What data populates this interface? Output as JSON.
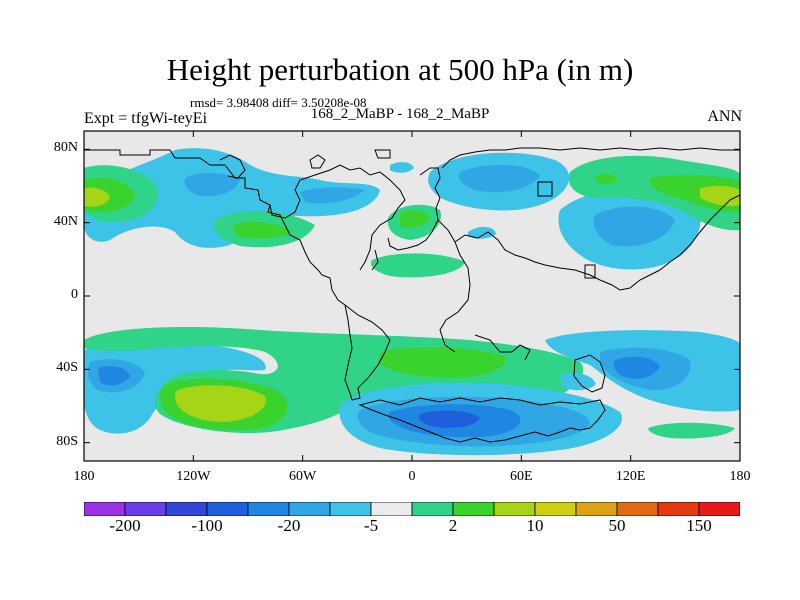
{
  "title": "Height perturbation at 500 hPa (in m)",
  "stats": "rmsd= 3.98408 diff= 3.50208e-08",
  "experiment": "Expt = tfgWi-teyEi",
  "case": "168_2_MaBP - 168_2_MaBP",
  "season": "ANN",
  "map": {
    "projection": "cylindrical equidistant",
    "lon_range": [
      -180,
      180
    ],
    "lat_range": [
      -90,
      90
    ],
    "lat_ticks": [
      {
        "value": 80,
        "label": "80N"
      },
      {
        "value": 40,
        "label": "40N"
      },
      {
        "value": 0,
        "label": "0"
      },
      {
        "value": -40,
        "label": "40S"
      },
      {
        "value": -80,
        "label": "80S"
      }
    ],
    "lon_ticks": [
      {
        "value": -180,
        "label": "180"
      },
      {
        "value": -120,
        "label": "120W"
      },
      {
        "value": -60,
        "label": "60W"
      },
      {
        "value": 0,
        "label": "0"
      },
      {
        "value": 60,
        "label": "60E"
      },
      {
        "value": 120,
        "label": "120E"
      },
      {
        "value": 180,
        "label": "180"
      }
    ],
    "background_color": "#e8e8e8",
    "coastline_color": "#000000"
  },
  "colorbar": {
    "colors": [
      "#9a32e6",
      "#6a3ee8",
      "#3246d8",
      "#1f5fdc",
      "#1f86e2",
      "#30a6e4",
      "#3dc2e8",
      "#ebebeb",
      "#2fd489",
      "#3ad22c",
      "#a6d416",
      "#cfcf12",
      "#dca114",
      "#e06a10",
      "#e33a14",
      "#e51a1a"
    ],
    "labels": [
      {
        "text": "-200",
        "boundary": 1
      },
      {
        "text": "-100",
        "boundary": 3
      },
      {
        "text": "-20",
        "boundary": 5
      },
      {
        "text": "-5",
        "boundary": 7
      },
      {
        "text": "2",
        "boundary": 9
      },
      {
        "text": "10",
        "boundary": 11
      },
      {
        "text": "50",
        "boundary": 13
      },
      {
        "text": "150",
        "boundary": 15
      }
    ]
  }
}
